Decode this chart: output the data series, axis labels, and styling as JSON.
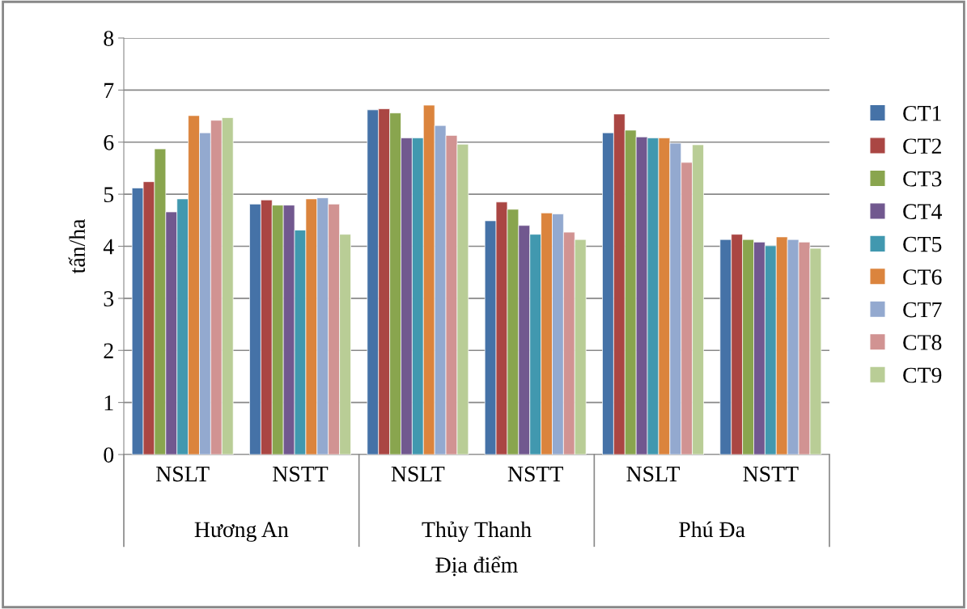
{
  "chart_data": {
    "type": "bar",
    "xlabel": "Địa điểm",
    "ylabel": "tấn/ha",
    "categories": [
      "NSLT",
      "NSTT",
      "NSLT",
      "NSTT",
      "NSLT",
      "NSTT"
    ],
    "annotations": [
      "Hương An",
      "Thủy Thanh",
      "Phú Đa"
    ],
    "series": [
      {
        "name": "CT1",
        "color": "#4572a7",
        "values": [
          5.12,
          4.81,
          6.62,
          4.49,
          6.18,
          4.13
        ]
      },
      {
        "name": "CT2",
        "color": "#aa4643",
        "values": [
          5.24,
          4.89,
          6.64,
          4.85,
          6.54,
          4.23
        ]
      },
      {
        "name": "CT3",
        "color": "#89a54e",
        "values": [
          5.87,
          4.79,
          6.56,
          4.71,
          6.23,
          4.13
        ]
      },
      {
        "name": "CT4",
        "color": "#71588f",
        "values": [
          4.66,
          4.79,
          6.08,
          4.4,
          6.1,
          4.08
        ]
      },
      {
        "name": "CT5",
        "color": "#4198af",
        "values": [
          4.91,
          4.31,
          6.08,
          4.23,
          6.08,
          4.01
        ]
      },
      {
        "name": "CT6",
        "color": "#db843d",
        "values": [
          6.51,
          4.91,
          6.71,
          4.64,
          6.08,
          4.18
        ]
      },
      {
        "name": "CT7",
        "color": "#93a9cf",
        "values": [
          6.18,
          4.93,
          6.32,
          4.62,
          5.98,
          4.13
        ]
      },
      {
        "name": "CT8",
        "color": "#d19392",
        "values": [
          6.42,
          4.81,
          6.13,
          4.27,
          5.61,
          4.08
        ]
      },
      {
        "name": "CT9",
        "color": "#b9cd96",
        "values": [
          6.47,
          4.23,
          5.96,
          4.13,
          5.95,
          3.96
        ]
      }
    ],
    "ylim": [
      0,
      8
    ],
    "yticks": [
      0,
      1,
      2,
      3,
      4,
      5,
      6,
      7,
      8
    ],
    "grid": "y",
    "legend": "right"
  }
}
